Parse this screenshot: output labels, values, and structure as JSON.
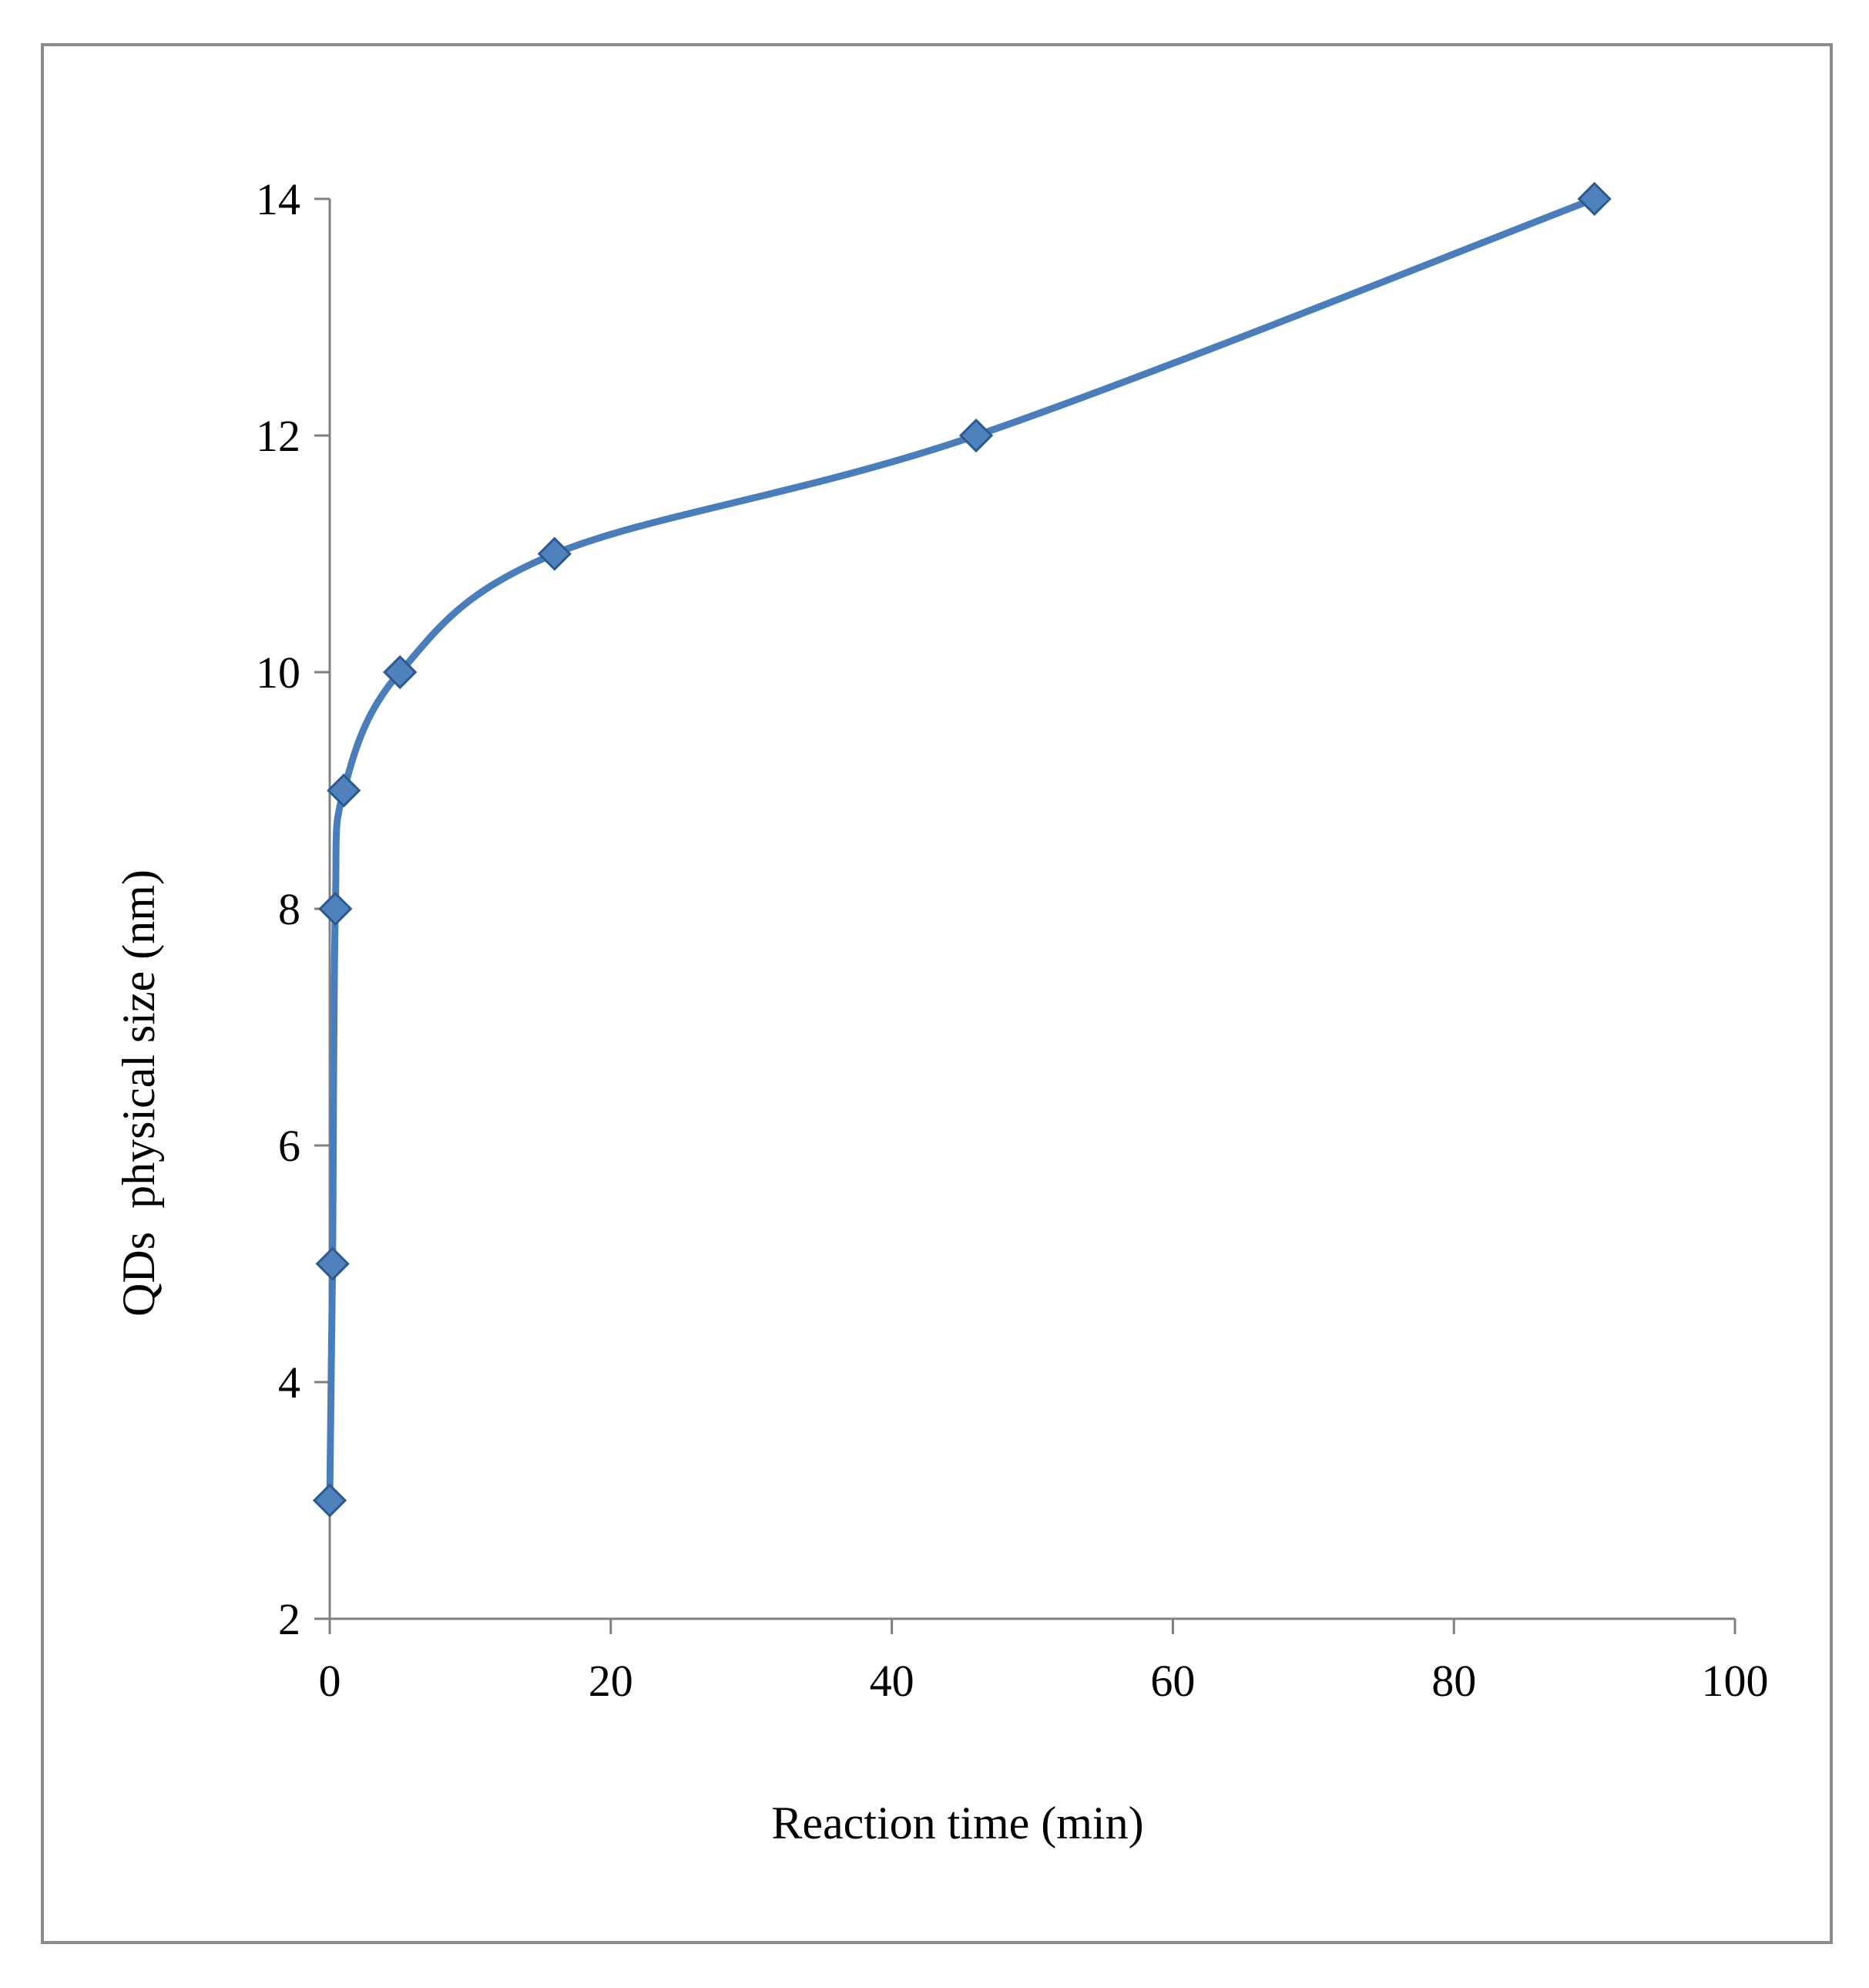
{
  "chart_data": {
    "type": "line",
    "smooth": true,
    "title": "",
    "xlabel": "Reaction time (min)",
    "ylabel": "QDs  physical size (nm)",
    "xlim": [
      0,
      100
    ],
    "ylim": [
      2,
      14
    ],
    "xticks": [
      0,
      20,
      40,
      60,
      80,
      100
    ],
    "yticks": [
      2,
      4,
      6,
      8,
      10,
      12,
      14
    ],
    "grid": false,
    "legend": "none",
    "series": [
      {
        "name": "QDs physical size",
        "color": "#4a7ebb",
        "marker": "diamond",
        "x": [
          0,
          0.2,
          0.4,
          1,
          5,
          16,
          46,
          90
        ],
        "y": [
          3,
          5,
          8,
          9,
          10,
          11,
          12,
          14
        ]
      }
    ]
  },
  "colors": {
    "line": "#4a7ebb",
    "marker_fill": "#4f81bd",
    "marker_stroke": "#2c5a8f",
    "axis": "#808080",
    "frame": "#8c8c8c"
  }
}
